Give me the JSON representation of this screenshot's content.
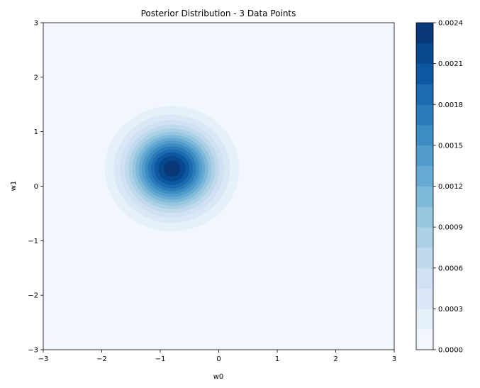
{
  "chart_data": {
    "type": "contour",
    "title": "Posterior Distribution - 3 Data Points",
    "xlabel": "w0",
    "ylabel": "w1",
    "xlim": [
      -3,
      3
    ],
    "ylim": [
      -3,
      3
    ],
    "xticks": [
      "−3",
      "−2",
      "−1",
      "0",
      "1",
      "2",
      "3"
    ],
    "yticks": [
      "−3",
      "−2",
      "−1",
      "0",
      "1",
      "2",
      "3"
    ],
    "grid": false,
    "colormap": "Blues",
    "distribution": {
      "center": [
        -0.8,
        0.32
      ],
      "peak_density": 0.00235,
      "spread_radius": 1.15
    },
    "colorbar": {
      "min": 0.0,
      "max": 0.0024,
      "levels": 16,
      "ticks": [
        "0.0000",
        "0.0003",
        "0.0006",
        "0.0009",
        "0.0012",
        "0.0015",
        "0.0018",
        "0.0021",
        "0.0024"
      ],
      "colors": [
        "#f2f7fd",
        "#e6f0f9",
        "#dae8f6",
        "#cfe1f2",
        "#c1d9ed",
        "#acd0e6",
        "#97c6df",
        "#7fb9da",
        "#66aad4",
        "#519ccb",
        "#3d8dc3",
        "#2c7bb9",
        "#1c6aaf",
        "#0d58a1",
        "#08488e",
        "#083877"
      ]
    }
  }
}
